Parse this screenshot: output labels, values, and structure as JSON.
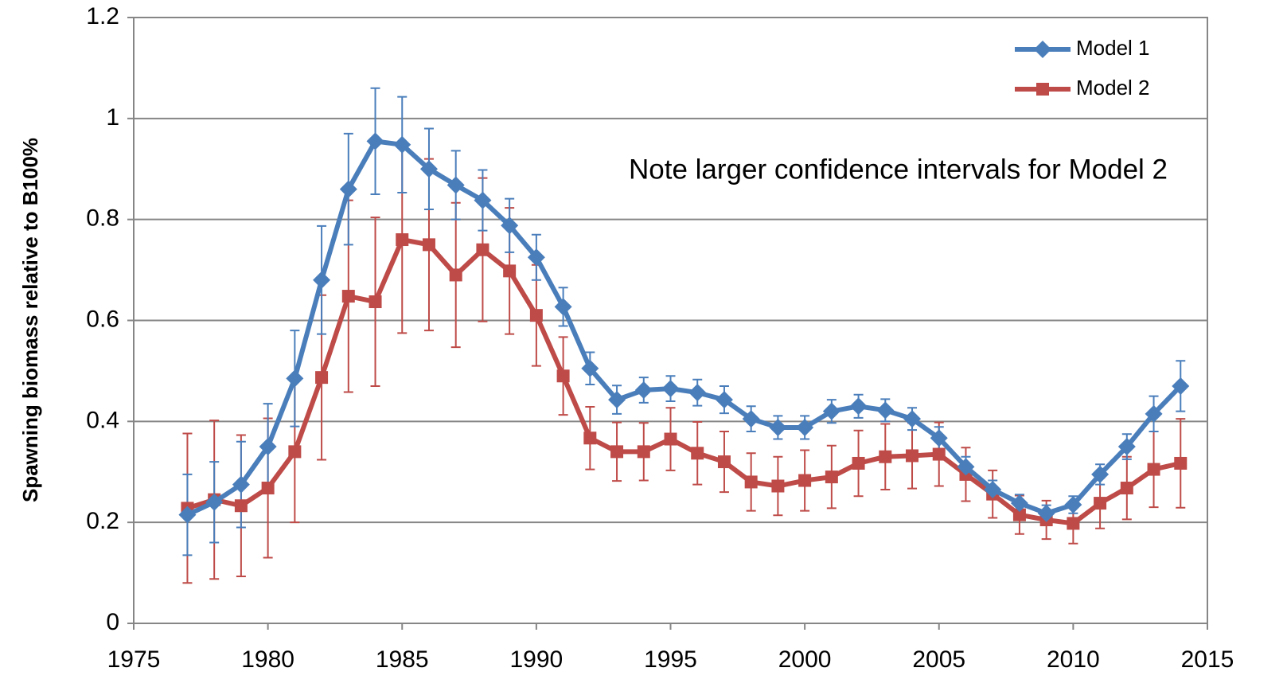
{
  "chart_data": {
    "type": "line",
    "y_label": "Spawning  biomass relative to B100%",
    "annotation": "Note larger confidence intervals for Model 2",
    "x": [
      1977,
      1978,
      1979,
      1980,
      1981,
      1982,
      1983,
      1984,
      1985,
      1986,
      1987,
      1988,
      1989,
      1990,
      1991,
      1992,
      1993,
      1994,
      1995,
      1996,
      1997,
      1998,
      1999,
      2000,
      2001,
      2002,
      2003,
      2004,
      2005,
      2006,
      2007,
      2008,
      2009,
      2010,
      2011,
      2012,
      2013,
      2014
    ],
    "series": [
      {
        "name": "Model 1",
        "color": "#4a7ebb",
        "marker": "diamond",
        "values": [
          0.215,
          0.24,
          0.275,
          0.35,
          0.485,
          0.68,
          0.86,
          0.955,
          0.948,
          0.9,
          0.868,
          0.838,
          0.788,
          0.725,
          0.627,
          0.505,
          0.443,
          0.462,
          0.465,
          0.457,
          0.443,
          0.405,
          0.388,
          0.388,
          0.42,
          0.43,
          0.422,
          0.405,
          0.367,
          0.31,
          0.265,
          0.238,
          0.218,
          0.235,
          0.295,
          0.35,
          0.415,
          0.47
        ],
        "errors": [
          0.08,
          0.08,
          0.085,
          0.085,
          0.095,
          0.107,
          0.11,
          0.105,
          0.095,
          0.08,
          0.068,
          0.06,
          0.053,
          0.045,
          0.038,
          0.032,
          0.028,
          0.025,
          0.025,
          0.026,
          0.027,
          0.025,
          0.023,
          0.023,
          0.023,
          0.023,
          0.022,
          0.022,
          0.022,
          0.02,
          0.018,
          0.017,
          0.016,
          0.017,
          0.02,
          0.025,
          0.035,
          0.05
        ]
      },
      {
        "name": "Model 2",
        "color": "#be4b48",
        "marker": "square",
        "values": [
          0.228,
          0.245,
          0.233,
          0.268,
          0.34,
          0.487,
          0.648,
          0.637,
          0.76,
          0.75,
          0.69,
          0.74,
          0.698,
          0.61,
          0.49,
          0.367,
          0.34,
          0.34,
          0.365,
          0.337,
          0.32,
          0.28,
          0.272,
          0.283,
          0.29,
          0.317,
          0.33,
          0.332,
          0.335,
          0.295,
          0.256,
          0.215,
          0.205,
          0.198,
          0.238,
          0.268,
          0.305,
          0.317
        ],
        "errors": [
          0.148,
          0.157,
          0.14,
          0.138,
          0.14,
          0.163,
          0.19,
          0.167,
          0.185,
          0.17,
          0.143,
          0.142,
          0.125,
          0.1,
          0.077,
          0.062,
          0.058,
          0.057,
          0.062,
          0.062,
          0.06,
          0.057,
          0.058,
          0.06,
          0.062,
          0.065,
          0.065,
          0.065,
          0.063,
          0.053,
          0.047,
          0.038,
          0.038,
          0.04,
          0.05,
          0.062,
          0.075,
          0.088
        ]
      }
    ],
    "xlim": [
      1975,
      2015
    ],
    "xticks": [
      1975,
      1980,
      1985,
      1990,
      1995,
      2000,
      2005,
      2010,
      2015
    ],
    "ylim": [
      0,
      1.2
    ],
    "yticks": [
      0,
      0.2,
      0.4,
      0.6,
      0.8,
      1,
      1.2
    ],
    "grid": true,
    "legend": "top-right"
  }
}
